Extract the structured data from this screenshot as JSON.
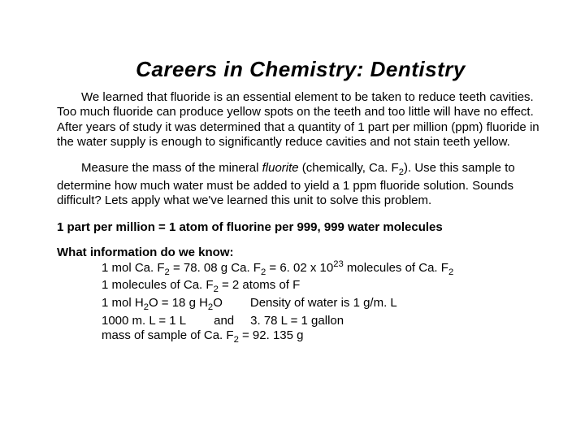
{
  "colors": {
    "text": "#000000",
    "background": "#ffffff"
  },
  "typography": {
    "title_fontsize": 26,
    "title_style": "italic",
    "body_fontsize": 15,
    "body_family": "Arial",
    "line_height": 1.22
  },
  "title": "Careers in Chemistry:  Dentistry",
  "para1": {
    "text": "We learned that fluoride is an essential element to be taken to reduce teeth cavities.  Too much fluoride can produce yellow spots on the teeth and too little will have no effect.  After years of study it was determined that a quantity of 1 part per million (ppm) fluoride in the water supply is enough to significantly reduce cavities and not stain teeth yellow."
  },
  "para2": {
    "prefix": "Measure the mass of the mineral ",
    "mineral": "fluorite",
    "chemically_open": " (chemically, Ca. F",
    "sub": "2",
    "chemically_close": "). Use this sample to determine how much water must be added to yield a 1 ppm fluoride solution.  Sounds difficult?  Lets apply what we've learned this unit to solve this problem."
  },
  "rule_line": "1 part per million  =  1 atom of fluorine per 999, 999 water molecules",
  "info_heading": "What information do we know:",
  "info": {
    "l1a": "1 mol Ca. F",
    "l1b": "  =  78. 08 g Ca. F",
    "l1c": "  =  6. 02 x 10",
    "l1d": " molecules of Ca. F",
    "sub2": "2",
    "sup23": "23",
    "l2a": "1 molecules of Ca. F",
    "l2b": "  =  2 atoms of F",
    "l3a": "1 mol H",
    "l3b": "O  =  18 g H",
    "l3c": "O",
    "l3dens": "Density of water is 1 g/m. L",
    "l4a": "1000 m. L  =  1 L",
    "l4and": "and",
    "l4b": "3. 78 L  =  1 gallon",
    "l5": "mass of sample of Ca. F",
    "l5b": "  =  92. 135 g"
  }
}
